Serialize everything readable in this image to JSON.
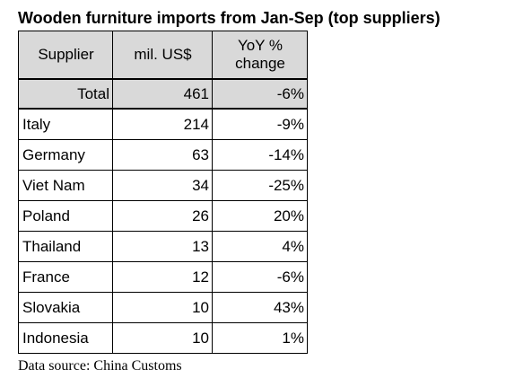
{
  "title": "Wooden furniture imports from Jan-Sep (top suppliers)",
  "source": "Data source: China Customs",
  "chart_data": {
    "type": "table",
    "title": "Wooden furniture imports from Jan-Sep (top suppliers)",
    "columns": [
      "Supplier",
      "mil. US$",
      "YoY % change"
    ],
    "header": {
      "supplier": "Supplier",
      "value": "mil. US$",
      "yoy_line1": "YoY %",
      "yoy_line2": "change"
    },
    "total": {
      "label": "Total",
      "value": "461",
      "yoy": "-6%"
    },
    "rows": [
      {
        "supplier": "Italy",
        "value": "214",
        "yoy": "-9%"
      },
      {
        "supplier": "Germany",
        "value": "63",
        "yoy": "-14%"
      },
      {
        "supplier": "Viet Nam",
        "value": "34",
        "yoy": "-25%"
      },
      {
        "supplier": "Poland",
        "value": "26",
        "yoy": "20%"
      },
      {
        "supplier": "Thailand",
        "value": "13",
        "yoy": "4%"
      },
      {
        "supplier": "France",
        "value": "12",
        "yoy": "-6%"
      },
      {
        "supplier": "Slovakia",
        "value": "10",
        "yoy": "43%"
      },
      {
        "supplier": "Indonesia",
        "value": "10",
        "yoy": "1%"
      }
    ],
    "source": "Data source: China Customs"
  }
}
